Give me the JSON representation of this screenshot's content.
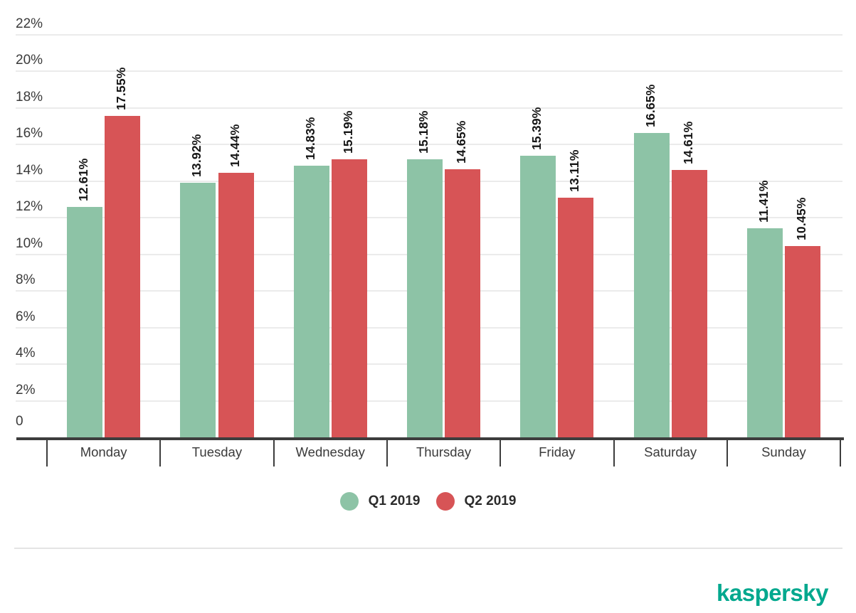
{
  "chart_data": {
    "type": "bar",
    "categories": [
      "Monday",
      "Tuesday",
      "Wednesday",
      "Thursday",
      "Friday",
      "Saturday",
      "Sunday"
    ],
    "series": [
      {
        "name": "Q1 2019",
        "color": "#8dc3a6",
        "values": [
          12.61,
          13.92,
          14.83,
          15.18,
          15.39,
          16.65,
          11.41
        ]
      },
      {
        "name": "Q2 2019",
        "color": "#d75456",
        "values": [
          17.55,
          14.44,
          15.19,
          14.65,
          13.11,
          14.61,
          10.45
        ]
      }
    ],
    "title": "",
    "xlabel": "",
    "ylabel": "",
    "ylim": [
      0,
      22
    ],
    "ytick_step": 2,
    "yaxis_labels": [
      "0",
      "2%",
      "4%",
      "6%",
      "8%",
      "10%",
      "12%",
      "14%",
      "16%",
      "18%",
      "20%",
      "22%"
    ],
    "grid": true,
    "legend_position": "bottom-center",
    "data_label_style": "rotated-90-percent",
    "data_label_suffix": "%"
  },
  "colors": {
    "axis": "#3d3d3d",
    "gridline": "#ebebeb",
    "tick_label": "#3a3a3a",
    "data_label": "#161616",
    "background": "#ffffff"
  },
  "branding": {
    "logo_text": "kaspersky",
    "logo_color": "#00a88e"
  }
}
